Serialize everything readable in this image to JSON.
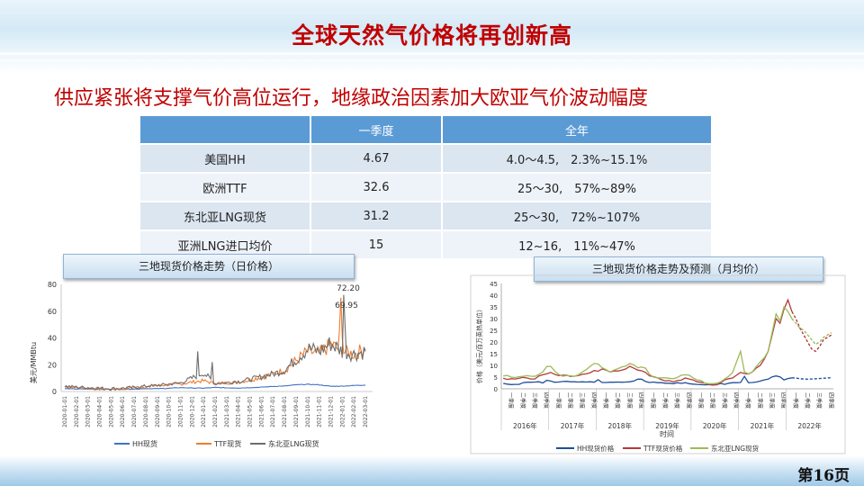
{
  "title": "全球天然气价格将再创新高",
  "subtitle": "供应紧张将支撑气价高位运行，地缘政治因素加大欧亚气价波动幅度",
  "table": {
    "headers": [
      "",
      "一季度",
      "全年"
    ],
    "rows": [
      [
        "美国HH",
        "4.67",
        "4.0～4.5,　2.3%~15.1%"
      ],
      [
        "欧洲TTF",
        "32.6",
        "25～30,　57%~89%"
      ],
      [
        "东北亚LNG现货",
        "31.2",
        "25～30,　72%~107%"
      ],
      [
        "亚洲LNG进口均价",
        "15",
        "12~16,　11%~47%"
      ]
    ]
  },
  "left_chart": {
    "title_box": "三地现货价格走势（日价格）",
    "ylabel": "美元/MMBtu",
    "yticks": [
      "0",
      "20",
      "40",
      "60",
      "80"
    ],
    "xticks": [
      "2020-01-01",
      "2020-02-01",
      "2020-03-01",
      "2020-04-01",
      "2020-05-01",
      "2020-06-01",
      "2020-07-01",
      "2020-08-01",
      "2020-09-01",
      "2020-10-01",
      "2020-11-01",
      "2020-12-01",
      "2021-01-01",
      "2021-02-01",
      "2021-03-01",
      "2021-04-01",
      "2021-05-01",
      "2021-06-01",
      "2021-07-01",
      "2021-08-01",
      "2021-09-01",
      "2021-10-01",
      "2021-11-01",
      "2021-12-01",
      "2022-01-01",
      "2022-02-01",
      "2022-03-01"
    ],
    "annotations": [
      "72.20",
      "69.95"
    ],
    "legend": [
      "HH现货",
      "TTF现货",
      "东北亚LNG现货"
    ],
    "colors": {
      "hh": "#4472c4",
      "ttf": "#ed7d31",
      "lng": "#6d6d6d"
    }
  },
  "right_chart": {
    "title_box": "三地现货价格走势及预测（月均价）",
    "ylabel": "价格（美元/百万英热单位）",
    "yticks": [
      "0",
      "5",
      "10",
      "15",
      "20",
      "25",
      "30",
      "35",
      "40",
      "45"
    ],
    "quarters": [
      "一季度",
      "二季度",
      "三季度",
      "四季度"
    ],
    "years": [
      "2016年",
      "2017年",
      "2018年",
      "2019年",
      "2020年",
      "2021年",
      "2022年"
    ],
    "xlabel": "时间",
    "legend": [
      "HH现货价格",
      "TTF现货价格",
      "东北亚LNG现货"
    ],
    "colors": {
      "hh": "#1f4e9a",
      "ttf": "#b33a3a",
      "lng": "#9bbb59"
    }
  },
  "page_number": "第16页"
}
